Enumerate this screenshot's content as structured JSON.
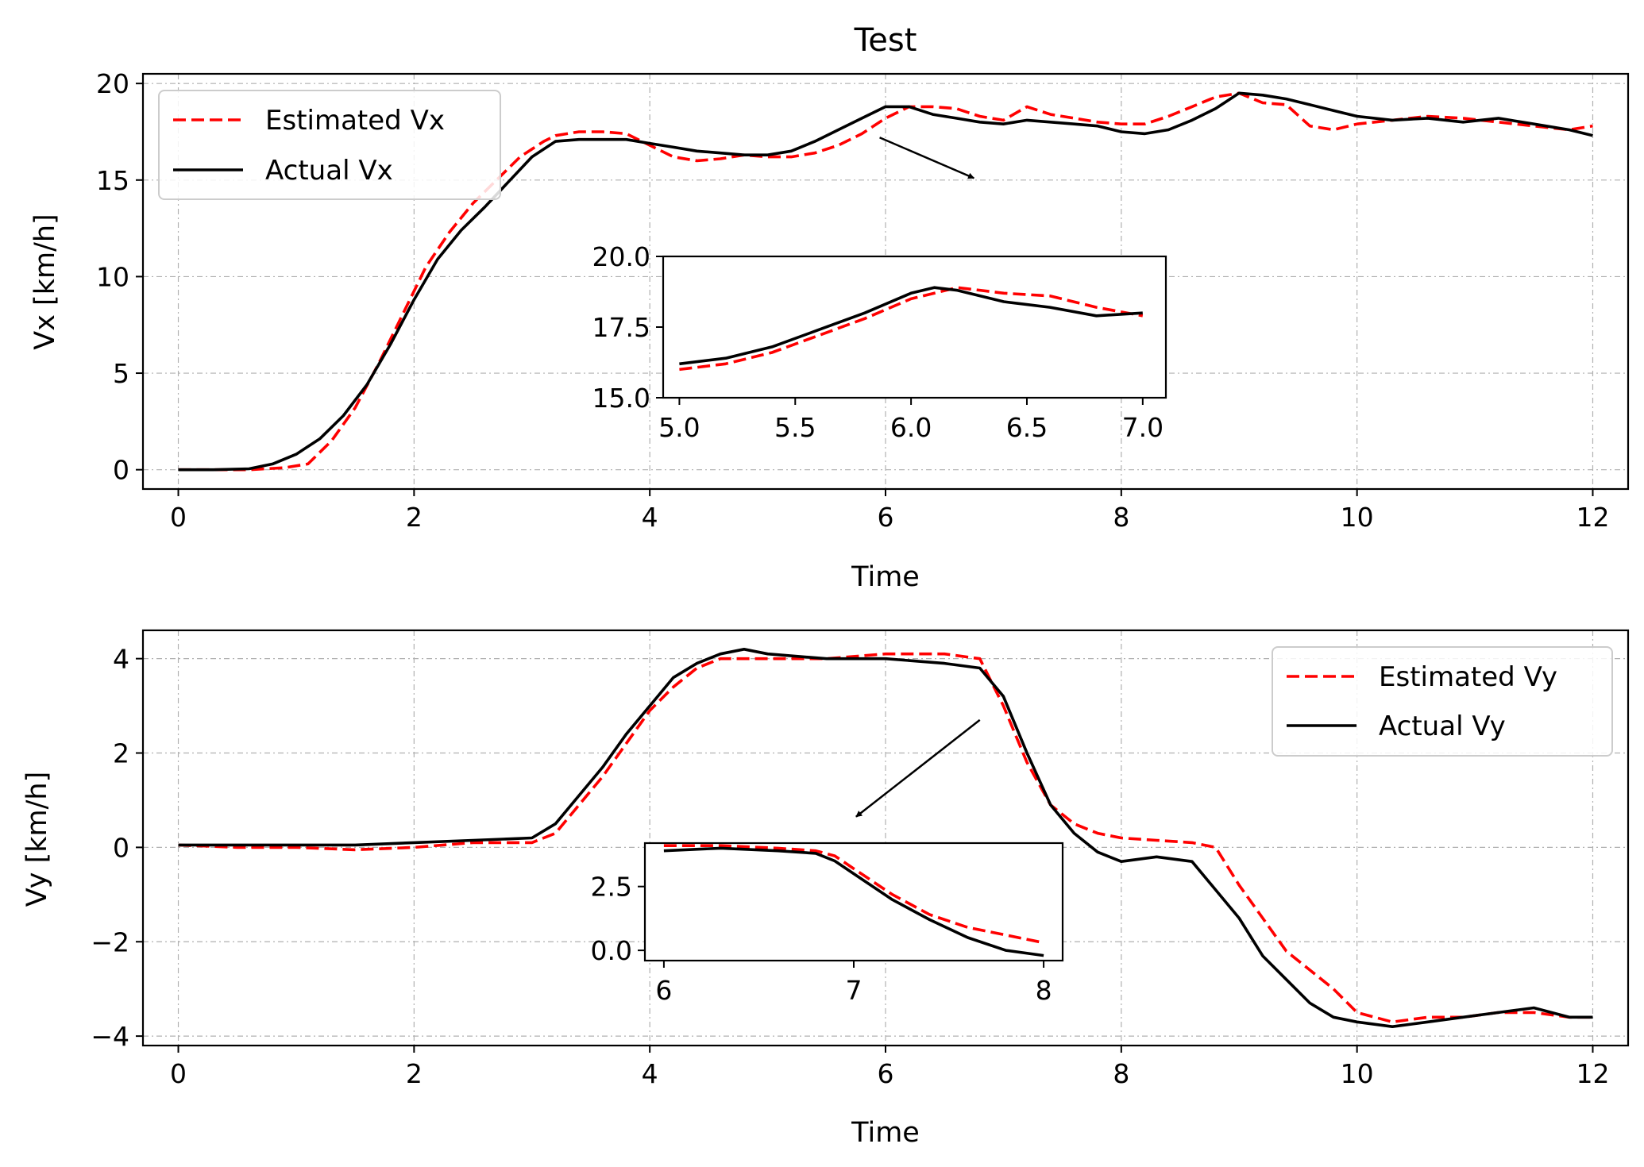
{
  "chart_data": [
    {
      "type": "line",
      "id": "vx",
      "title": "Test",
      "xlabel": "Time",
      "ylabel": "Vx [km/h]",
      "xlim": [
        -0.3,
        12.3
      ],
      "ylim": [
        -1,
        20.5
      ],
      "xticks": [
        0,
        2,
        4,
        6,
        8,
        10,
        12
      ],
      "yticks": [
        0,
        5,
        10,
        15,
        20
      ],
      "grid": true,
      "legend_position": "top-left",
      "colors": {
        "estimated": "#ff0000",
        "actual": "#000000"
      },
      "series": [
        {
          "name": "Estimated Vx",
          "style": "dashed",
          "x": [
            0,
            0.3,
            0.6,
            0.9,
            1.1,
            1.3,
            1.5,
            1.7,
            1.9,
            2.1,
            2.3,
            2.5,
            2.7,
            2.9,
            3.1,
            3.2,
            3.4,
            3.6,
            3.8,
            4.0,
            4.2,
            4.4,
            4.6,
            4.8,
            5.0,
            5.2,
            5.4,
            5.6,
            5.8,
            6.0,
            6.2,
            6.4,
            6.6,
            6.8,
            7.0,
            7.2,
            7.4,
            7.6,
            7.8,
            8.0,
            8.2,
            8.4,
            8.6,
            8.8,
            9.0,
            9.2,
            9.4,
            9.6,
            9.8,
            10.0,
            10.3,
            10.6,
            10.9,
            11.2,
            11.5,
            11.8,
            12.0
          ],
          "y": [
            0,
            0,
            0,
            0.1,
            0.3,
            1.5,
            3.2,
            5.5,
            8.0,
            10.5,
            12.3,
            13.8,
            15.0,
            16.2,
            17.0,
            17.3,
            17.5,
            17.5,
            17.4,
            16.8,
            16.2,
            16.0,
            16.1,
            16.3,
            16.2,
            16.2,
            16.4,
            16.8,
            17.4,
            18.2,
            18.8,
            18.8,
            18.7,
            18.3,
            18.1,
            18.8,
            18.4,
            18.2,
            18.0,
            17.9,
            17.9,
            18.3,
            18.8,
            19.3,
            19.5,
            19.0,
            18.9,
            17.8,
            17.6,
            17.9,
            18.1,
            18.3,
            18.2,
            18.0,
            17.8,
            17.6,
            17.8
          ]
        },
        {
          "name": "Actual Vx",
          "style": "solid",
          "x": [
            0,
            0.3,
            0.6,
            0.8,
            1.0,
            1.2,
            1.4,
            1.6,
            1.8,
            2.0,
            2.2,
            2.4,
            2.6,
            2.8,
            3.0,
            3.2,
            3.4,
            3.6,
            3.8,
            4.0,
            4.2,
            4.4,
            4.6,
            4.8,
            5.0,
            5.2,
            5.4,
            5.6,
            5.8,
            6.0,
            6.2,
            6.4,
            6.6,
            6.8,
            7.0,
            7.2,
            7.4,
            7.6,
            7.8,
            8.0,
            8.2,
            8.4,
            8.6,
            8.8,
            9.0,
            9.2,
            9.4,
            9.6,
            9.8,
            10.0,
            10.3,
            10.6,
            10.9,
            11.2,
            11.5,
            11.8,
            12.0
          ],
          "y": [
            0,
            0,
            0.05,
            0.3,
            0.8,
            1.6,
            2.8,
            4.4,
            6.5,
            8.8,
            10.9,
            12.4,
            13.6,
            14.9,
            16.2,
            17.0,
            17.1,
            17.1,
            17.1,
            16.9,
            16.7,
            16.5,
            16.4,
            16.3,
            16.3,
            16.5,
            17.0,
            17.6,
            18.2,
            18.8,
            18.8,
            18.4,
            18.2,
            18.0,
            17.9,
            18.1,
            18.0,
            17.9,
            17.8,
            17.5,
            17.4,
            17.6,
            18.1,
            18.7,
            19.5,
            19.4,
            19.2,
            18.9,
            18.6,
            18.3,
            18.1,
            18.2,
            18.0,
            18.2,
            17.9,
            17.6,
            17.3
          ]
        }
      ],
      "inset": {
        "xlim": [
          4.93,
          7.1
        ],
        "ylim": [
          15,
          20
        ],
        "xticks": [
          5.0,
          5.5,
          6.0,
          6.5,
          7.0
        ],
        "xtick_labels": [
          "5.0",
          "5.5",
          "6.0",
          "6.5",
          "7.0"
        ],
        "yticks": [
          15.0,
          17.5,
          20.0
        ],
        "ytick_labels": [
          "15.0",
          "17.5",
          "20.0"
        ],
        "arrow": {
          "from": [
            5.95,
            17.2
          ],
          "to": [
            6.75,
            15.1
          ]
        },
        "series": [
          {
            "name": "Estimated Vx",
            "style": "dashed",
            "x": [
              5.0,
              5.2,
              5.4,
              5.6,
              5.8,
              6.0,
              6.2,
              6.4,
              6.6,
              6.8,
              7.0
            ],
            "y": [
              16.0,
              16.2,
              16.6,
              17.2,
              17.8,
              18.5,
              18.9,
              18.7,
              18.6,
              18.2,
              17.9
            ]
          },
          {
            "name": "Actual Vx",
            "style": "solid",
            "x": [
              5.0,
              5.2,
              5.4,
              5.6,
              5.8,
              6.0,
              6.1,
              6.2,
              6.4,
              6.6,
              6.8,
              7.0
            ],
            "y": [
              16.2,
              16.4,
              16.8,
              17.4,
              18.0,
              18.7,
              18.9,
              18.8,
              18.4,
              18.2,
              17.9,
              18.0
            ]
          }
        ]
      }
    },
    {
      "type": "line",
      "id": "vy",
      "title": "",
      "xlabel": "Time",
      "ylabel": "Vy [km/h]",
      "xlim": [
        -0.3,
        12.3
      ],
      "ylim": [
        -4.2,
        4.6
      ],
      "xticks": [
        0,
        2,
        4,
        6,
        8,
        10,
        12
      ],
      "yticks": [
        -4,
        -2,
        0,
        2,
        4
      ],
      "ytick_labels": [
        "−4",
        "−2",
        "0",
        "2",
        "4"
      ],
      "grid": true,
      "legend_position": "top-right",
      "colors": {
        "estimated": "#ff0000",
        "actual": "#000000"
      },
      "series": [
        {
          "name": "Estimated Vy",
          "style": "dashed",
          "x": [
            0,
            0.5,
            1.0,
            1.5,
            2.0,
            2.5,
            3.0,
            3.2,
            3.4,
            3.6,
            3.8,
            4.0,
            4.2,
            4.4,
            4.6,
            4.8,
            5.0,
            5.5,
            6.0,
            6.5,
            6.8,
            7.0,
            7.2,
            7.4,
            7.6,
            7.8,
            8.0,
            8.3,
            8.6,
            8.8,
            9.0,
            9.2,
            9.4,
            9.6,
            9.8,
            10.0,
            10.3,
            10.6,
            10.9,
            11.2,
            11.5,
            11.8,
            12.0
          ],
          "y": [
            0.05,
            0.0,
            0.0,
            -0.05,
            0.0,
            0.1,
            0.1,
            0.3,
            0.9,
            1.5,
            2.2,
            2.9,
            3.4,
            3.8,
            4.0,
            4.0,
            4.0,
            4.0,
            4.1,
            4.1,
            4.0,
            3.0,
            1.8,
            0.9,
            0.5,
            0.3,
            0.2,
            0.15,
            0.1,
            0.0,
            -0.8,
            -1.5,
            -2.2,
            -2.6,
            -3.0,
            -3.5,
            -3.7,
            -3.6,
            -3.6,
            -3.5,
            -3.5,
            -3.6,
            -3.6
          ]
        },
        {
          "name": "Actual Vy",
          "style": "solid",
          "x": [
            0,
            0.5,
            1.0,
            1.5,
            2.0,
            2.5,
            3.0,
            3.2,
            3.4,
            3.6,
            3.8,
            4.0,
            4.2,
            4.4,
            4.6,
            4.8,
            5.0,
            5.5,
            6.0,
            6.5,
            6.8,
            7.0,
            7.2,
            7.4,
            7.6,
            7.8,
            8.0,
            8.3,
            8.6,
            8.8,
            9.0,
            9.2,
            9.4,
            9.6,
            9.8,
            10.0,
            10.3,
            10.6,
            10.9,
            11.2,
            11.5,
            11.8,
            12.0
          ],
          "y": [
            0.05,
            0.05,
            0.05,
            0.05,
            0.1,
            0.15,
            0.2,
            0.5,
            1.1,
            1.7,
            2.4,
            3.0,
            3.6,
            3.9,
            4.1,
            4.2,
            4.1,
            4.0,
            4.0,
            3.9,
            3.8,
            3.2,
            2.0,
            0.9,
            0.3,
            -0.1,
            -0.3,
            -0.2,
            -0.3,
            -0.9,
            -1.5,
            -2.3,
            -2.8,
            -3.3,
            -3.6,
            -3.7,
            -3.8,
            -3.7,
            -3.6,
            -3.5,
            -3.4,
            -3.6,
            -3.6
          ]
        }
      ],
      "inset": {
        "xlim": [
          5.9,
          8.1
        ],
        "ylim": [
          -0.4,
          4.2
        ],
        "xticks": [
          6,
          7,
          8
        ],
        "xtick_labels": [
          "6",
          "7",
          "8"
        ],
        "yticks": [
          0,
          2.5
        ],
        "ytick_labels": [
          "0.0",
          "2.5"
        ],
        "arrow": {
          "from": [
            6.8,
            2.7
          ],
          "to": [
            5.75,
            0.65
          ]
        },
        "series": [
          {
            "name": "Estimated Vy",
            "style": "dashed",
            "x": [
              6.0,
              6.3,
              6.6,
              6.8,
              6.9,
              7.0,
              7.2,
              7.4,
              7.6,
              7.8,
              8.0
            ],
            "y": [
              4.1,
              4.1,
              4.0,
              3.9,
              3.7,
              3.2,
              2.2,
              1.4,
              0.9,
              0.6,
              0.3
            ]
          },
          {
            "name": "Actual Vy",
            "style": "solid",
            "x": [
              6.0,
              6.3,
              6.6,
              6.8,
              6.9,
              7.0,
              7.2,
              7.4,
              7.6,
              7.8,
              8.0
            ],
            "y": [
              3.9,
              4.0,
              3.9,
              3.8,
              3.5,
              3.0,
              2.0,
              1.2,
              0.5,
              0.0,
              -0.2
            ]
          }
        ]
      }
    }
  ]
}
